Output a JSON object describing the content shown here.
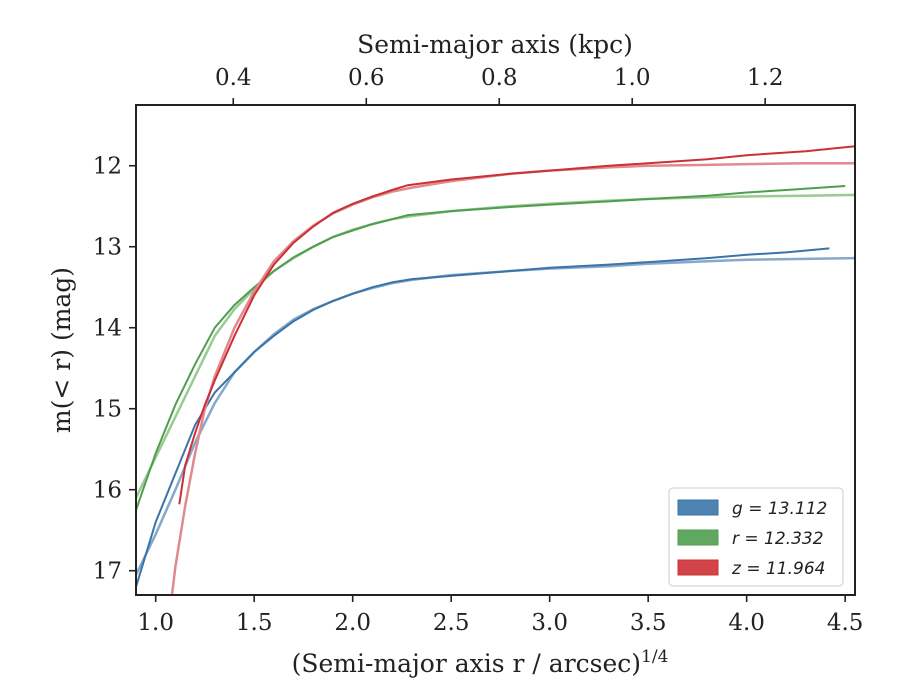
{
  "chart_data": {
    "type": "line",
    "xlabel": "(Semi-major axis r / arcsec)",
    "xlabel_superscript": "1/4",
    "ylabel": "m(< r) (mag)",
    "top_xlabel": "Semi-major axis (kpc)",
    "xlim": [
      0.9,
      4.55
    ],
    "ylim": [
      17.3,
      11.25
    ],
    "y_inverted": true,
    "xticks": [
      "1.0",
      "1.5",
      "2.0",
      "2.5",
      "3.0",
      "3.5",
      "4.0",
      "4.5"
    ],
    "xtick_values": [
      1.0,
      1.5,
      2.0,
      2.5,
      3.0,
      3.5,
      4.0,
      4.5
    ],
    "yticks": [
      "12",
      "13",
      "14",
      "15",
      "16",
      "17"
    ],
    "ytick_values": [
      12,
      13,
      14,
      15,
      16,
      17
    ],
    "top_xticks": [
      "0.4",
      "0.6",
      "0.8",
      "1.0",
      "1.2"
    ],
    "top_xtick_positions": [
      1.3937,
      2.069,
      2.744,
      3.419,
      4.094
    ],
    "grid": false,
    "legend_position": "lower-right",
    "series": [
      {
        "name": "g = 13.112",
        "color": "#3a74a8",
        "model_color": "#86a9cb",
        "x": [
          0.9,
          1.0,
          1.1,
          1.2,
          1.3,
          1.4,
          1.5,
          1.6,
          1.7,
          1.8,
          1.9,
          2.0,
          2.1,
          2.2,
          2.3,
          2.5,
          2.8,
          3.0,
          3.3,
          3.5,
          3.8,
          4.0,
          4.2,
          4.42
        ],
        "y": [
          17.2,
          16.4,
          15.8,
          15.2,
          14.8,
          14.55,
          14.3,
          14.1,
          13.92,
          13.78,
          13.67,
          13.58,
          13.5,
          13.44,
          13.4,
          13.36,
          13.3,
          13.26,
          13.22,
          13.19,
          13.14,
          13.1,
          13.07,
          13.02
        ],
        "model_x": [
          0.9,
          1.0,
          1.1,
          1.2,
          1.3,
          1.4,
          1.5,
          1.6,
          1.7,
          1.8,
          1.9,
          2.0,
          2.1,
          2.2,
          2.3,
          2.5,
          2.8,
          3.0,
          3.3,
          3.5,
          3.8,
          4.0,
          4.3,
          4.55
        ],
        "model_y": [
          17.05,
          16.55,
          16.0,
          15.42,
          14.93,
          14.55,
          14.3,
          14.08,
          13.9,
          13.77,
          13.67,
          13.58,
          13.51,
          13.45,
          13.41,
          13.35,
          13.3,
          13.27,
          13.24,
          13.21,
          13.18,
          13.16,
          13.15,
          13.14
        ]
      },
      {
        "name": "r = 12.332",
        "color": "#4f9e4f",
        "model_color": "#9acb92",
        "x": [
          0.9,
          1.0,
          1.1,
          1.2,
          1.3,
          1.4,
          1.5,
          1.6,
          1.7,
          1.8,
          1.9,
          2.0,
          2.1,
          2.2,
          2.28,
          2.5,
          2.8,
          3.0,
          3.3,
          3.5,
          3.8,
          4.0,
          4.2,
          4.5
        ],
        "y": [
          16.25,
          15.55,
          14.95,
          14.45,
          14.0,
          13.72,
          13.5,
          13.3,
          13.13,
          13.0,
          12.88,
          12.8,
          12.72,
          12.66,
          12.61,
          12.56,
          12.51,
          12.48,
          12.44,
          12.41,
          12.37,
          12.33,
          12.3,
          12.25
        ],
        "model_x": [
          0.9,
          1.0,
          1.1,
          1.2,
          1.3,
          1.4,
          1.5,
          1.6,
          1.7,
          1.8,
          1.9,
          2.0,
          2.1,
          2.2,
          2.3,
          2.5,
          2.8,
          3.0,
          3.3,
          3.5,
          3.8,
          4.0,
          4.3,
          4.55
        ],
        "model_y": [
          16.1,
          15.6,
          15.1,
          14.6,
          14.1,
          13.77,
          13.52,
          13.3,
          13.14,
          13.0,
          12.88,
          12.79,
          12.72,
          12.66,
          12.62,
          12.56,
          12.5,
          12.47,
          12.43,
          12.41,
          12.39,
          12.38,
          12.37,
          12.36
        ]
      },
      {
        "name": "z = 11.964",
        "color": "#cc3036",
        "model_color": "#e08a8e",
        "x": [
          1.12,
          1.15,
          1.2,
          1.25,
          1.3,
          1.4,
          1.5,
          1.6,
          1.7,
          1.8,
          1.9,
          2.0,
          2.1,
          2.2,
          2.28,
          2.5,
          2.8,
          3.0,
          3.3,
          3.5,
          3.8,
          4.0,
          4.3,
          4.55
        ],
        "y": [
          16.18,
          15.7,
          15.3,
          14.95,
          14.65,
          14.1,
          13.6,
          13.22,
          12.95,
          12.75,
          12.58,
          12.47,
          12.38,
          12.3,
          12.24,
          12.17,
          12.1,
          12.06,
          12.0,
          11.97,
          11.92,
          11.87,
          11.82,
          11.76
        ],
        "model_x": [
          1.08,
          1.1,
          1.15,
          1.2,
          1.25,
          1.3,
          1.4,
          1.5,
          1.6,
          1.7,
          1.8,
          1.9,
          2.0,
          2.1,
          2.2,
          2.3,
          2.5,
          2.8,
          3.0,
          3.3,
          3.5,
          3.8,
          4.0,
          4.3,
          4.55
        ],
        "model_y": [
          17.35,
          16.95,
          16.2,
          15.55,
          15.0,
          14.6,
          14.0,
          13.55,
          13.18,
          12.93,
          12.74,
          12.59,
          12.48,
          12.39,
          12.32,
          12.27,
          12.19,
          12.1,
          12.06,
          12.02,
          12.0,
          11.99,
          11.98,
          11.97,
          11.97
        ]
      }
    ]
  }
}
